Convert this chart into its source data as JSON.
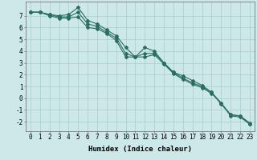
{
  "xlabel": "Humidex (Indice chaleur)",
  "ylabel": "",
  "background_color": "#cce8e8",
  "grid_color": "#aacccc",
  "line_color": "#2a6e62",
  "xlim": [
    -0.5,
    23.5
  ],
  "ylim": [
    -2.8,
    8.2
  ],
  "xticks": [
    0,
    1,
    2,
    3,
    4,
    5,
    6,
    7,
    8,
    9,
    10,
    11,
    12,
    13,
    14,
    15,
    16,
    17,
    18,
    19,
    20,
    21,
    22,
    23
  ],
  "yticks": [
    -2,
    -1,
    0,
    1,
    2,
    3,
    4,
    5,
    6,
    7
  ],
  "series": {
    "upper": [
      7.3,
      7.3,
      7.1,
      7.0,
      7.1,
      7.7,
      6.6,
      6.3,
      5.8,
      5.3,
      4.3,
      3.5,
      4.3,
      4.0,
      3.0,
      2.2,
      1.9,
      1.5,
      1.1,
      0.5,
      -0.5,
      -1.4,
      -1.5,
      -2.1
    ],
    "mean": [
      7.3,
      7.3,
      7.1,
      6.9,
      6.9,
      7.3,
      6.3,
      6.1,
      5.6,
      5.1,
      3.8,
      3.5,
      3.8,
      3.8,
      3.0,
      2.2,
      1.7,
      1.3,
      1.0,
      0.5,
      -0.4,
      -1.4,
      -1.5,
      -2.2
    ],
    "lower": [
      7.3,
      7.3,
      7.0,
      6.8,
      6.8,
      6.9,
      6.0,
      5.9,
      5.5,
      4.9,
      3.5,
      3.5,
      3.5,
      3.7,
      2.9,
      2.1,
      1.6,
      1.2,
      0.9,
      0.4,
      -0.4,
      -1.5,
      -1.6,
      -2.2
    ]
  },
  "marker": "D",
  "marker_size": 2.0,
  "line_width": 0.8,
  "font_family": "monospace",
  "xlabel_fontsize": 6.5,
  "tick_fontsize": 5.5
}
